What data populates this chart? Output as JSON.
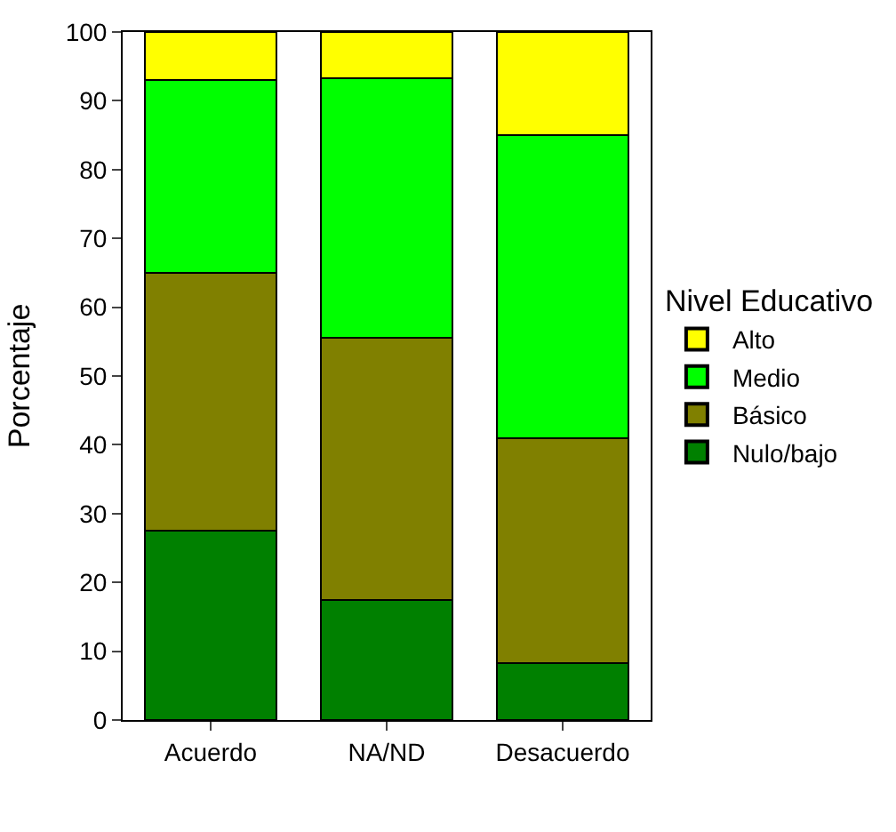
{
  "chart_data": {
    "type": "bar",
    "stacked": true,
    "ylabel": "Porcentaje",
    "legend_title": "Nivel Educativo",
    "legend": "right",
    "categories": [
      "Acuerdo",
      "NA/ND",
      "Desacuerdo"
    ],
    "ylim": [
      0,
      100
    ],
    "yticks": [
      0,
      10,
      20,
      30,
      40,
      50,
      60,
      70,
      80,
      90,
      100
    ],
    "series": [
      {
        "name": "Nulo/bajo",
        "color": "#008000",
        "values": [
          27.5,
          17.5,
          8.3
        ]
      },
      {
        "name": "Básico",
        "color": "#808000",
        "values": [
          37.5,
          38,
          32.7
        ]
      },
      {
        "name": "Medio",
        "color": "#00ff00",
        "values": [
          28,
          37.8,
          44
        ]
      },
      {
        "name": "Alto",
        "color": "#ffff00",
        "values": [
          7,
          6.7,
          15
        ]
      }
    ]
  }
}
